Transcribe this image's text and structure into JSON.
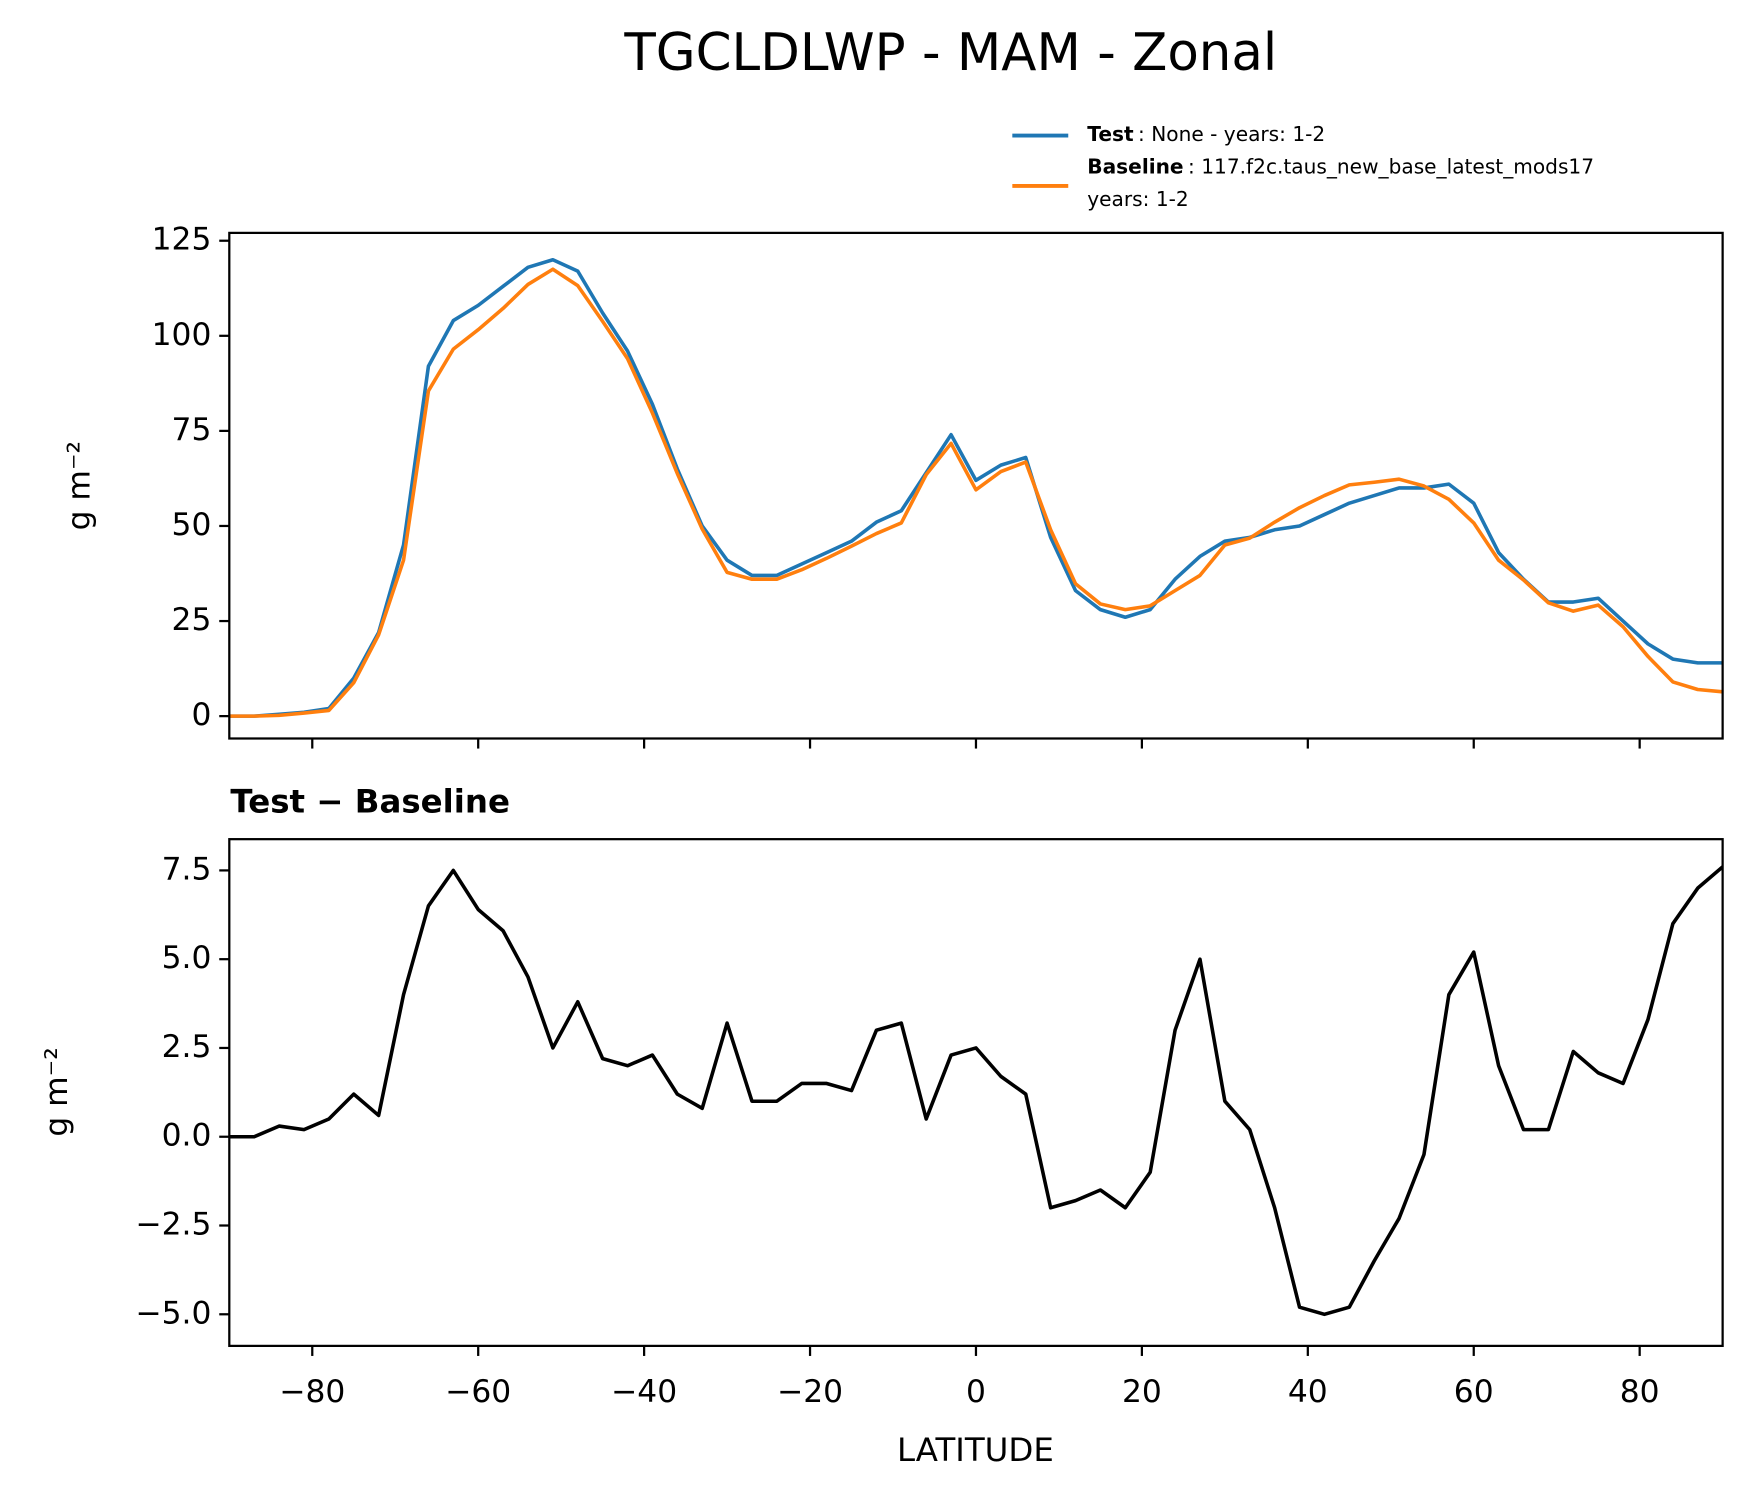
{
  "chart_data": [
    {
      "type": "line",
      "title": "TGCLDLWP - MAM - Zonal",
      "ylabel": "g m⁻²",
      "x": [
        -90,
        -87,
        -84,
        -81,
        -78,
        -75,
        -72,
        -69,
        -66,
        -63,
        -60,
        -57,
        -54,
        -51,
        -48,
        -45,
        -42,
        -39,
        -36,
        -33,
        -30,
        -27,
        -24,
        -21,
        -18,
        -15,
        -12,
        -9,
        -6,
        -3,
        0,
        3,
        6,
        9,
        12,
        15,
        18,
        21,
        24,
        27,
        30,
        33,
        36,
        39,
        42,
        45,
        48,
        51,
        54,
        57,
        60,
        63,
        66,
        69,
        72,
        75,
        78,
        81,
        84,
        87,
        90
      ],
      "series": [
        {
          "name": "Test",
          "legend_text": [
            ": None - years: 1-2"
          ],
          "color": "#1f77b4",
          "values": [
            0,
            0,
            0.5,
            1,
            2,
            10,
            22,
            45,
            92,
            104,
            108,
            113,
            118,
            120,
            117,
            106,
            96,
            82,
            65,
            50,
            41,
            37,
            37,
            40,
            43,
            46,
            51,
            54,
            64,
            74,
            62,
            66,
            68,
            47,
            33,
            28,
            26,
            28,
            36,
            42,
            46,
            47,
            49,
            50,
            53,
            56,
            58,
            60,
            60,
            61,
            56,
            43,
            36,
            30,
            30,
            31,
            25,
            19,
            15,
            14,
            14
          ]
        },
        {
          "name": "Baseline",
          "legend_text": [
            ": 117.f2c.taus_new_base_latest_mods17",
            "years: 1-2"
          ],
          "color": "#ff7f0e",
          "values": [
            0,
            0,
            0.2,
            0.8,
            1.5,
            8.8,
            21.4,
            41,
            85.5,
            96.5,
            101.6,
            107.2,
            113.5,
            117.5,
            113.2,
            103.8,
            94,
            79.7,
            63.8,
            49.2,
            37.8,
            36,
            36,
            38.5,
            41.5,
            44.7,
            48,
            50.8,
            63.5,
            71.7,
            59.5,
            64.3,
            66.8,
            49,
            34.8,
            29.5,
            28,
            29,
            33,
            37,
            45,
            46.8,
            51,
            54.8,
            58,
            60.8,
            61.5,
            62.3,
            60.5,
            57,
            50.8,
            41,
            35.8,
            29.8,
            27.6,
            29.2,
            23.5,
            15.7,
            9,
            7,
            6.4
          ]
        }
      ],
      "xlim": [
        -90,
        90
      ],
      "xticks": [
        -80,
        -60,
        -40,
        -20,
        0,
        20,
        40,
        60,
        80
      ],
      "ylim": [
        -5.88,
        127.06
      ],
      "yticks": [
        0,
        25,
        50,
        75,
        100,
        125
      ],
      "legend": "upper right"
    },
    {
      "type": "line",
      "title": "Test − Baseline",
      "ylabel": "g m⁻²",
      "xlabel": "LATITUDE",
      "color": "#000000",
      "x": [
        -90,
        -87,
        -84,
        -81,
        -78,
        -75,
        -72,
        -69,
        -66,
        -63,
        -60,
        -57,
        -54,
        -51,
        -48,
        -45,
        -42,
        -39,
        -36,
        -33,
        -30,
        -27,
        -24,
        -21,
        -18,
        -15,
        -12,
        -9,
        -6,
        -3,
        0,
        3,
        6,
        9,
        12,
        15,
        18,
        21,
        24,
        27,
        30,
        33,
        36,
        39,
        42,
        45,
        48,
        51,
        54,
        57,
        60,
        63,
        66,
        69,
        72,
        75,
        78,
        81,
        84,
        87,
        90
      ],
      "values": [
        0,
        0,
        0.3,
        0.2,
        0.5,
        1.2,
        0.6,
        4,
        6.5,
        7.5,
        6.4,
        5.8,
        4.5,
        2.5,
        3.8,
        2.2,
        2.0,
        2.3,
        1.2,
        0.8,
        3.2,
        1.0,
        1.0,
        1.5,
        1.5,
        1.3,
        3.0,
        3.2,
        0.5,
        2.3,
        2.5,
        1.7,
        1.2,
        -2.0,
        -1.8,
        -1.5,
        -2.0,
        -1.0,
        3.0,
        5.0,
        1.0,
        0.2,
        -2.0,
        -4.8,
        -5.0,
        -4.8,
        -3.5,
        -2.3,
        -0.5,
        4.0,
        5.2,
        2.0,
        0.2,
        0.2,
        2.4,
        1.8,
        1.5,
        3.3,
        6.0,
        7.0,
        7.6
      ],
      "xlim": [
        -90,
        90
      ],
      "xticks": [
        {
          "value": -80,
          "label": "−80"
        },
        {
          "value": -60,
          "label": "−60"
        },
        {
          "value": -40,
          "label": "−40"
        },
        {
          "value": -20,
          "label": "−20"
        },
        0,
        20,
        40,
        60,
        80
      ],
      "ylim": [
        -5.89,
        8.38
      ],
      "yticks": [
        {
          "value": -5,
          "label": "−5.0"
        },
        {
          "value": -2.5,
          "label": "−2.5"
        },
        {
          "value": 0,
          "label": "0.0"
        },
        2.5,
        {
          "value": 5,
          "label": "5.0"
        },
        7.5
      ]
    }
  ]
}
